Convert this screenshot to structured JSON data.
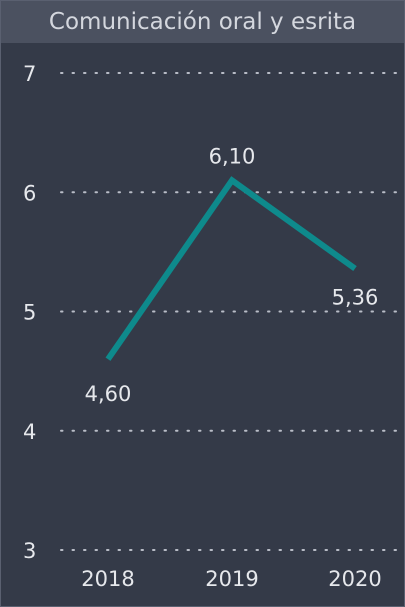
{
  "chart_data": {
    "type": "line",
    "title": "Comunicación oral y esrita",
    "categories": [
      "2018",
      "2019",
      "2020"
    ],
    "series": [
      {
        "values": [
          4.6,
          6.1,
          5.36
        ],
        "data_labels": [
          "4,60",
          "6,10",
          "5,36"
        ],
        "color": "#0e8a8c"
      }
    ],
    "ylim": [
      3,
      7
    ],
    "y_ticks": [
      "3",
      "4",
      "5",
      "6",
      "7"
    ],
    "grid": true,
    "xlabel": "",
    "ylabel": ""
  },
  "colors": {
    "background": "#343a48",
    "title_bar": "#4b5160",
    "text": "#e6e8ec",
    "gridline": "#b9bdc7",
    "line": "#0e8a8c"
  }
}
